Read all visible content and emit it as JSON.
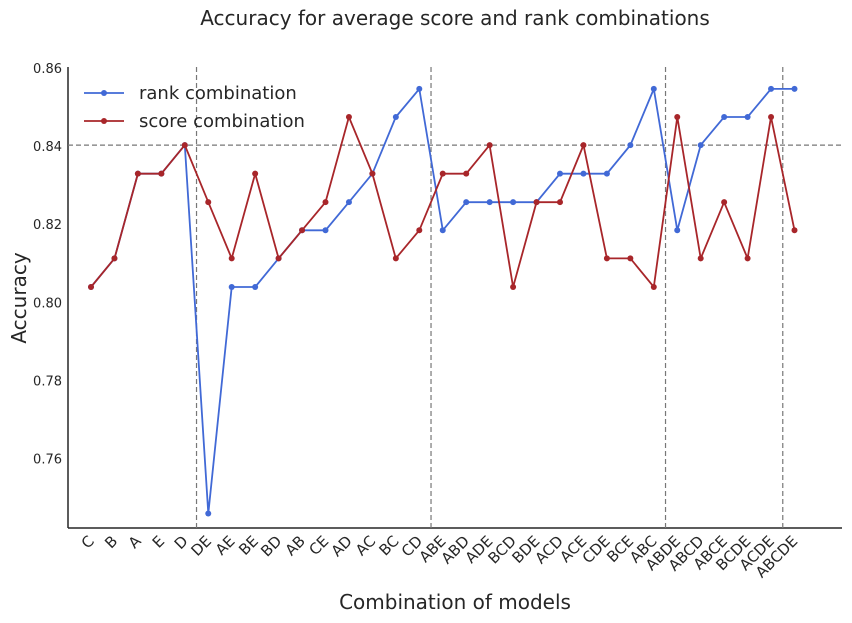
{
  "chart_data": {
    "type": "line",
    "title": "Accuracy for average score and rank combinations",
    "xlabel": "Combination of models",
    "ylabel": "Accuracy",
    "categories": [
      "C",
      "B",
      "A",
      "E",
      "D",
      "DE",
      "AE",
      "BE",
      "BD",
      "AB",
      "CE",
      "AD",
      "AC",
      "BC",
      "CD",
      "ABE",
      "ABD",
      "ADE",
      "BCD",
      "BDE",
      "ACD",
      "ACE",
      "CDE",
      "BCE",
      "ABC",
      "ABDE",
      "ABCD",
      "ABCE",
      "BCDE",
      "ACDE",
      "ABCDE"
    ],
    "ylim": [
      0.7425,
      0.8605
    ],
    "yticks": [
      "0.76",
      "0.78",
      "0.80",
      "0.82",
      "0.84",
      "0.86"
    ],
    "hline": 0.8405,
    "vlines_after": [
      "D",
      "CD",
      "ABC",
      "ACDE"
    ],
    "legend_position": "top-left",
    "grid": false,
    "series": [
      {
        "name": "rank combination",
        "color": "#4169d6",
        "values": [
          0.8042,
          0.8115,
          0.8332,
          0.8332,
          0.8405,
          0.7462,
          0.8042,
          0.8042,
          0.8115,
          0.8187,
          0.8187,
          0.8259,
          0.8332,
          0.8477,
          0.8549,
          0.8187,
          0.8259,
          0.8259,
          0.8259,
          0.8259,
          0.8332,
          0.8332,
          0.8332,
          0.8405,
          0.8549,
          0.8187,
          0.8405,
          0.8477,
          0.8477,
          0.8549,
          0.8549
        ]
      },
      {
        "name": "score combination",
        "color": "#a8262a",
        "values": [
          0.8042,
          0.8115,
          0.8332,
          0.8332,
          0.8405,
          0.8259,
          0.8115,
          0.8332,
          0.8115,
          0.8187,
          0.8259,
          0.8477,
          0.8332,
          0.8115,
          0.8187,
          0.8332,
          0.8332,
          0.8405,
          0.8042,
          0.8259,
          0.8259,
          0.8405,
          0.8115,
          0.8115,
          0.8042,
          0.8477,
          0.8115,
          0.8259,
          0.8115,
          0.8477,
          0.8187
        ]
      }
    ]
  }
}
